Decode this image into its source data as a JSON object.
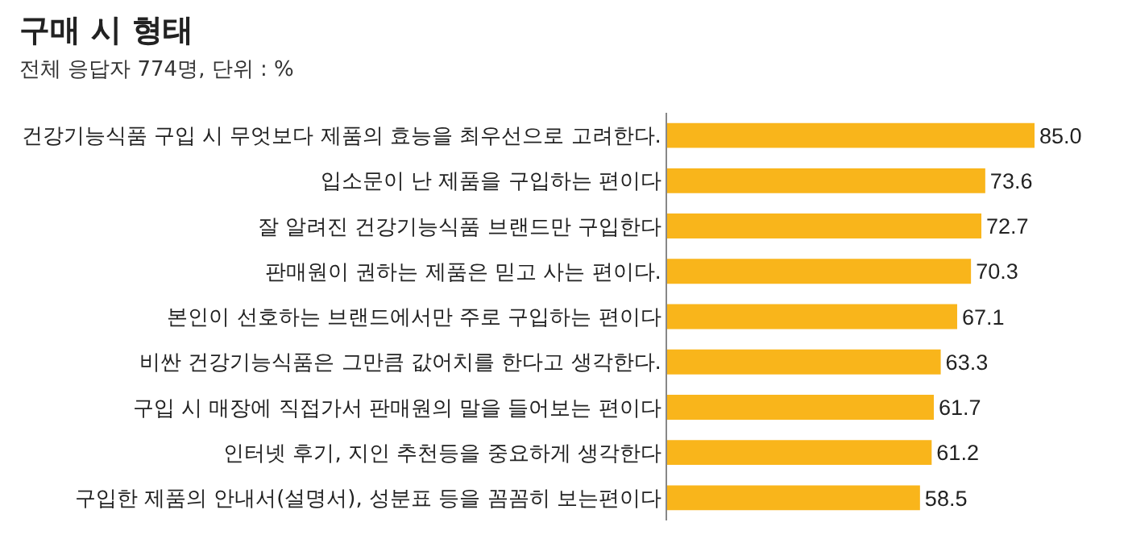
{
  "chart_data": {
    "type": "bar",
    "orientation": "horizontal",
    "title": "구매 시 형태",
    "subtitle": "전체 응답자 774명, 단위 : %",
    "categories": [
      "건강기능식품 구입 시 무엇보다 제품의 효능을 최우선으로 고려한다.",
      "입소문이 난 제품을 구입하는 편이다",
      "잘 알려진 건강기능식품 브랜드만 구입한다",
      "판매원이 권하는 제품은 믿고 사는 편이다.",
      "본인이 선호하는 브랜드에서만 주로 구입하는 편이다",
      "비싼 건강기능식품은 그만큼 값어치를 한다고 생각한다.",
      "구입 시 매장에 직접가서 판매원의 말을 들어보는 편이다",
      "인터넷 후기, 지인 추천등을 중요하게 생각한다",
      "구입한 제품의 안내서(설명서), 성분표 등을 꼼꼼히 보는편이다"
    ],
    "values": [
      85.0,
      73.6,
      72.7,
      70.3,
      67.1,
      63.3,
      61.7,
      61.2,
      58.5
    ],
    "value_labels": [
      "85.0",
      "73.6",
      "72.7",
      "70.3",
      "67.1",
      "63.3",
      "61.7",
      "61.2",
      "58.5"
    ],
    "color": "#f9b51b",
    "tick_labels": "y"
  }
}
